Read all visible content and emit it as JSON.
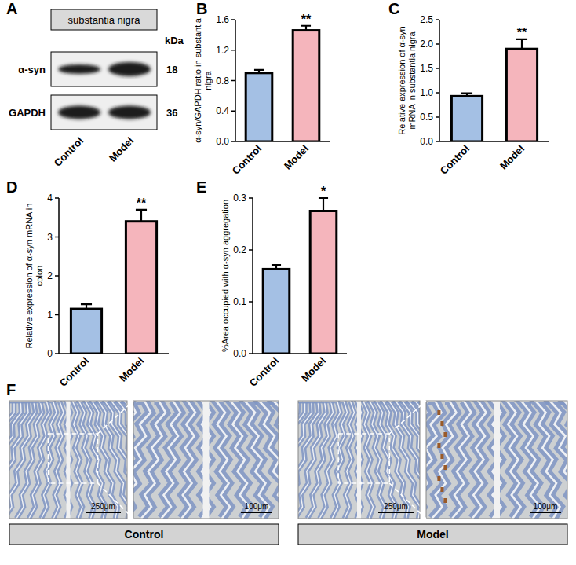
{
  "chart_data": [
    {
      "panel": "B",
      "type": "bar",
      "categories": [
        "Control",
        "Model"
      ],
      "values": [
        0.9,
        1.46
      ],
      "errors": [
        0.04,
        0.06
      ],
      "colors": [
        "#a4c0e4",
        "#f5b5bc"
      ],
      "ylim": [
        0,
        1.6
      ],
      "yticks": [
        {
          "value": 0,
          "label": "0.0"
        },
        0.4,
        0.8,
        1.2,
        1.6
      ],
      "y_label": "α-syn/GAPDH ratio in substantia nigra",
      "annotations": [
        {
          "x": "Model",
          "text": "**"
        }
      ]
    },
    {
      "panel": "C",
      "type": "bar",
      "categories": [
        "Control",
        "Model"
      ],
      "values": [
        0.93,
        1.9
      ],
      "errors": [
        0.06,
        0.2
      ],
      "colors": [
        "#a4c0e4",
        "#f5b5bc"
      ],
      "ylim": [
        0,
        2.5
      ],
      "yticks": [
        {
          "value": 0,
          "label": "0.0"
        },
        0.5,
        {
          "value": 1,
          "label": "1.0"
        },
        1.5,
        {
          "value": 2,
          "label": "2.0"
        },
        2.5
      ],
      "y_label": "Relative expression of α-syn mRNA in substantia nigra",
      "annotations": [
        {
          "x": "Model",
          "text": "**"
        }
      ]
    },
    {
      "panel": "D",
      "type": "bar",
      "categories": [
        "Control",
        "Model"
      ],
      "values": [
        1.15,
        3.4
      ],
      "errors": [
        0.12,
        0.3
      ],
      "colors": [
        "#a4c0e4",
        "#f5b5bc"
      ],
      "ylim": [
        0,
        4
      ],
      "yticks": [
        0,
        1,
        2,
        3,
        4
      ],
      "y_label": "Relative expression of α-syn mRNA in colon",
      "annotations": [
        {
          "x": "Model",
          "text": "**"
        }
      ]
    },
    {
      "panel": "E",
      "type": "bar",
      "categories": [
        "Control",
        "Model"
      ],
      "values": [
        0.163,
        0.275
      ],
      "errors": [
        0.008,
        0.025
      ],
      "colors": [
        "#a4c0e4",
        "#f5b5bc"
      ],
      "ylim": [
        0,
        0.3
      ],
      "yticks": [
        {
          "value": 0,
          "label": "0.0"
        },
        0.1,
        0.2,
        0.3
      ],
      "y_label": "%Area occupied with α-syn aggregation",
      "annotations": [
        {
          "x": "Model",
          "text": "*"
        }
      ]
    }
  ],
  "blot": {
    "panel": "A",
    "header": "substantia nigra",
    "unit": "kDa",
    "rows": [
      {
        "label": "α-syn",
        "kda": "18"
      },
      {
        "label": "GAPDH",
        "kda": "36"
      }
    ],
    "lanes": [
      "Control",
      "Model"
    ]
  },
  "histology": {
    "panel": "F",
    "groups": [
      {
        "label": "Control",
        "scale_bars": [
          "250μm",
          "100μm"
        ]
      },
      {
        "label": "Model",
        "scale_bars": [
          "250μm",
          "100μm"
        ]
      }
    ]
  }
}
